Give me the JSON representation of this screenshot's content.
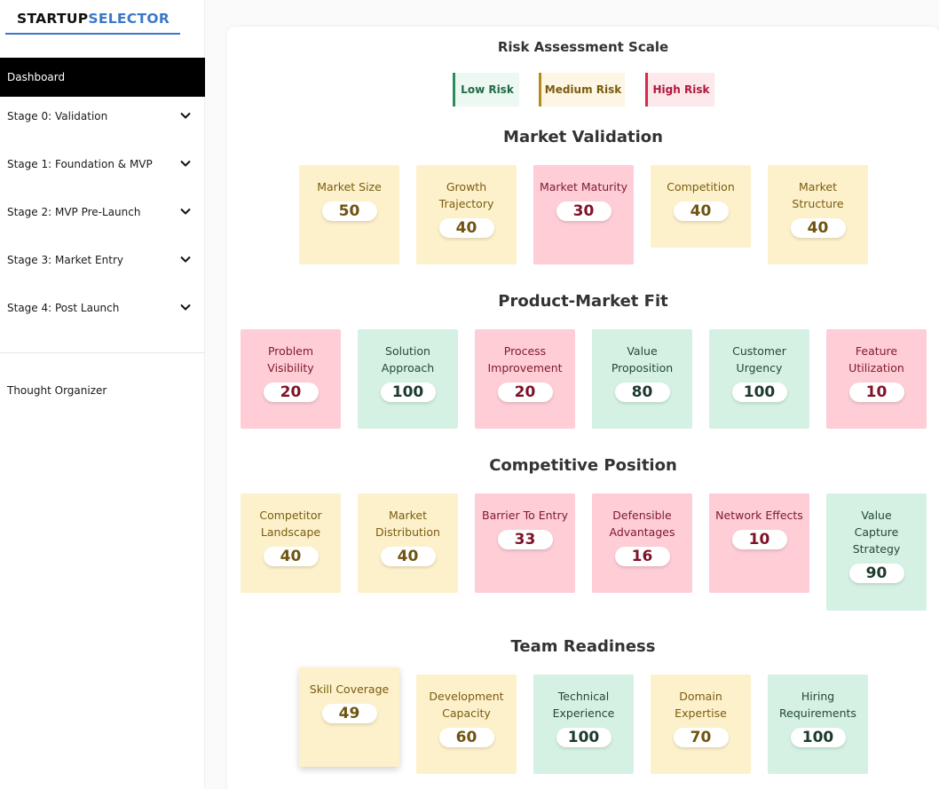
{
  "brand": {
    "part1": "STARTUP",
    "part2": "SELECTOR"
  },
  "sidebar": {
    "items": [
      {
        "label": "Dashboard"
      },
      {
        "label": "Stage 0: Validation"
      },
      {
        "label": "Stage 1: Foundation & MVP"
      },
      {
        "label": "Stage 2: MVP Pre-Launch"
      },
      {
        "label": "Stage 3: Market Entry"
      },
      {
        "label": "Stage 4: Post Launch"
      },
      {
        "label": "Thought Organizer"
      }
    ]
  },
  "scale": {
    "title": "Risk Assessment Scale",
    "low": "Low Risk",
    "medium": "Medium Risk",
    "high": "High Risk"
  },
  "sections": [
    {
      "title": "Market Validation",
      "cards": [
        {
          "label": "Market Size",
          "value": "50",
          "risk": "medium"
        },
        {
          "label": "Growth Trajectory",
          "value": "40",
          "risk": "medium"
        },
        {
          "label": "Market Maturity",
          "value": "30",
          "risk": "high"
        },
        {
          "label": "Competition",
          "value": "40",
          "risk": "medium"
        },
        {
          "label": "Market Structure",
          "value": "40",
          "risk": "medium"
        }
      ]
    },
    {
      "title": "Product-Market Fit",
      "cards": [
        {
          "label": "Problem Visibility",
          "value": "20",
          "risk": "high"
        },
        {
          "label": "Solution Approach",
          "value": "100",
          "risk": "low"
        },
        {
          "label": "Process Improvement",
          "value": "20",
          "risk": "high"
        },
        {
          "label": "Value Proposition",
          "value": "80",
          "risk": "low"
        },
        {
          "label": "Customer Urgency",
          "value": "100",
          "risk": "low"
        },
        {
          "label": "Feature Utilization",
          "value": "10",
          "risk": "high"
        }
      ]
    },
    {
      "title": "Competitive Position",
      "cards": [
        {
          "label": "Competitor Landscape",
          "value": "40",
          "risk": "medium"
        },
        {
          "label": "Market Distribution",
          "value": "40",
          "risk": "medium"
        },
        {
          "label": "Barrier To Entry",
          "value": "33",
          "risk": "high"
        },
        {
          "label": "Defensible Advantages",
          "value": "16",
          "risk": "high"
        },
        {
          "label": "Network Effects",
          "value": "10",
          "risk": "high"
        },
        {
          "label": "Value Capture Strategy",
          "value": "90",
          "risk": "low"
        }
      ]
    },
    {
      "title": "Team Readiness",
      "cards": [
        {
          "label": "Skill Coverage",
          "value": "49",
          "risk": "medium"
        },
        {
          "label": "Development Capacity",
          "value": "60",
          "risk": "medium"
        },
        {
          "label": "Technical Experience",
          "value": "100",
          "risk": "low"
        },
        {
          "label": "Domain Expertise",
          "value": "70",
          "risk": "medium"
        },
        {
          "label": "Hiring Requirements",
          "value": "100",
          "risk": "low"
        }
      ]
    }
  ],
  "colors": {
    "accent": "#3a78c9",
    "low_bg": "#d4f1e3",
    "medium_bg": "#fdf1cb",
    "high_bg": "#fecdd6"
  }
}
